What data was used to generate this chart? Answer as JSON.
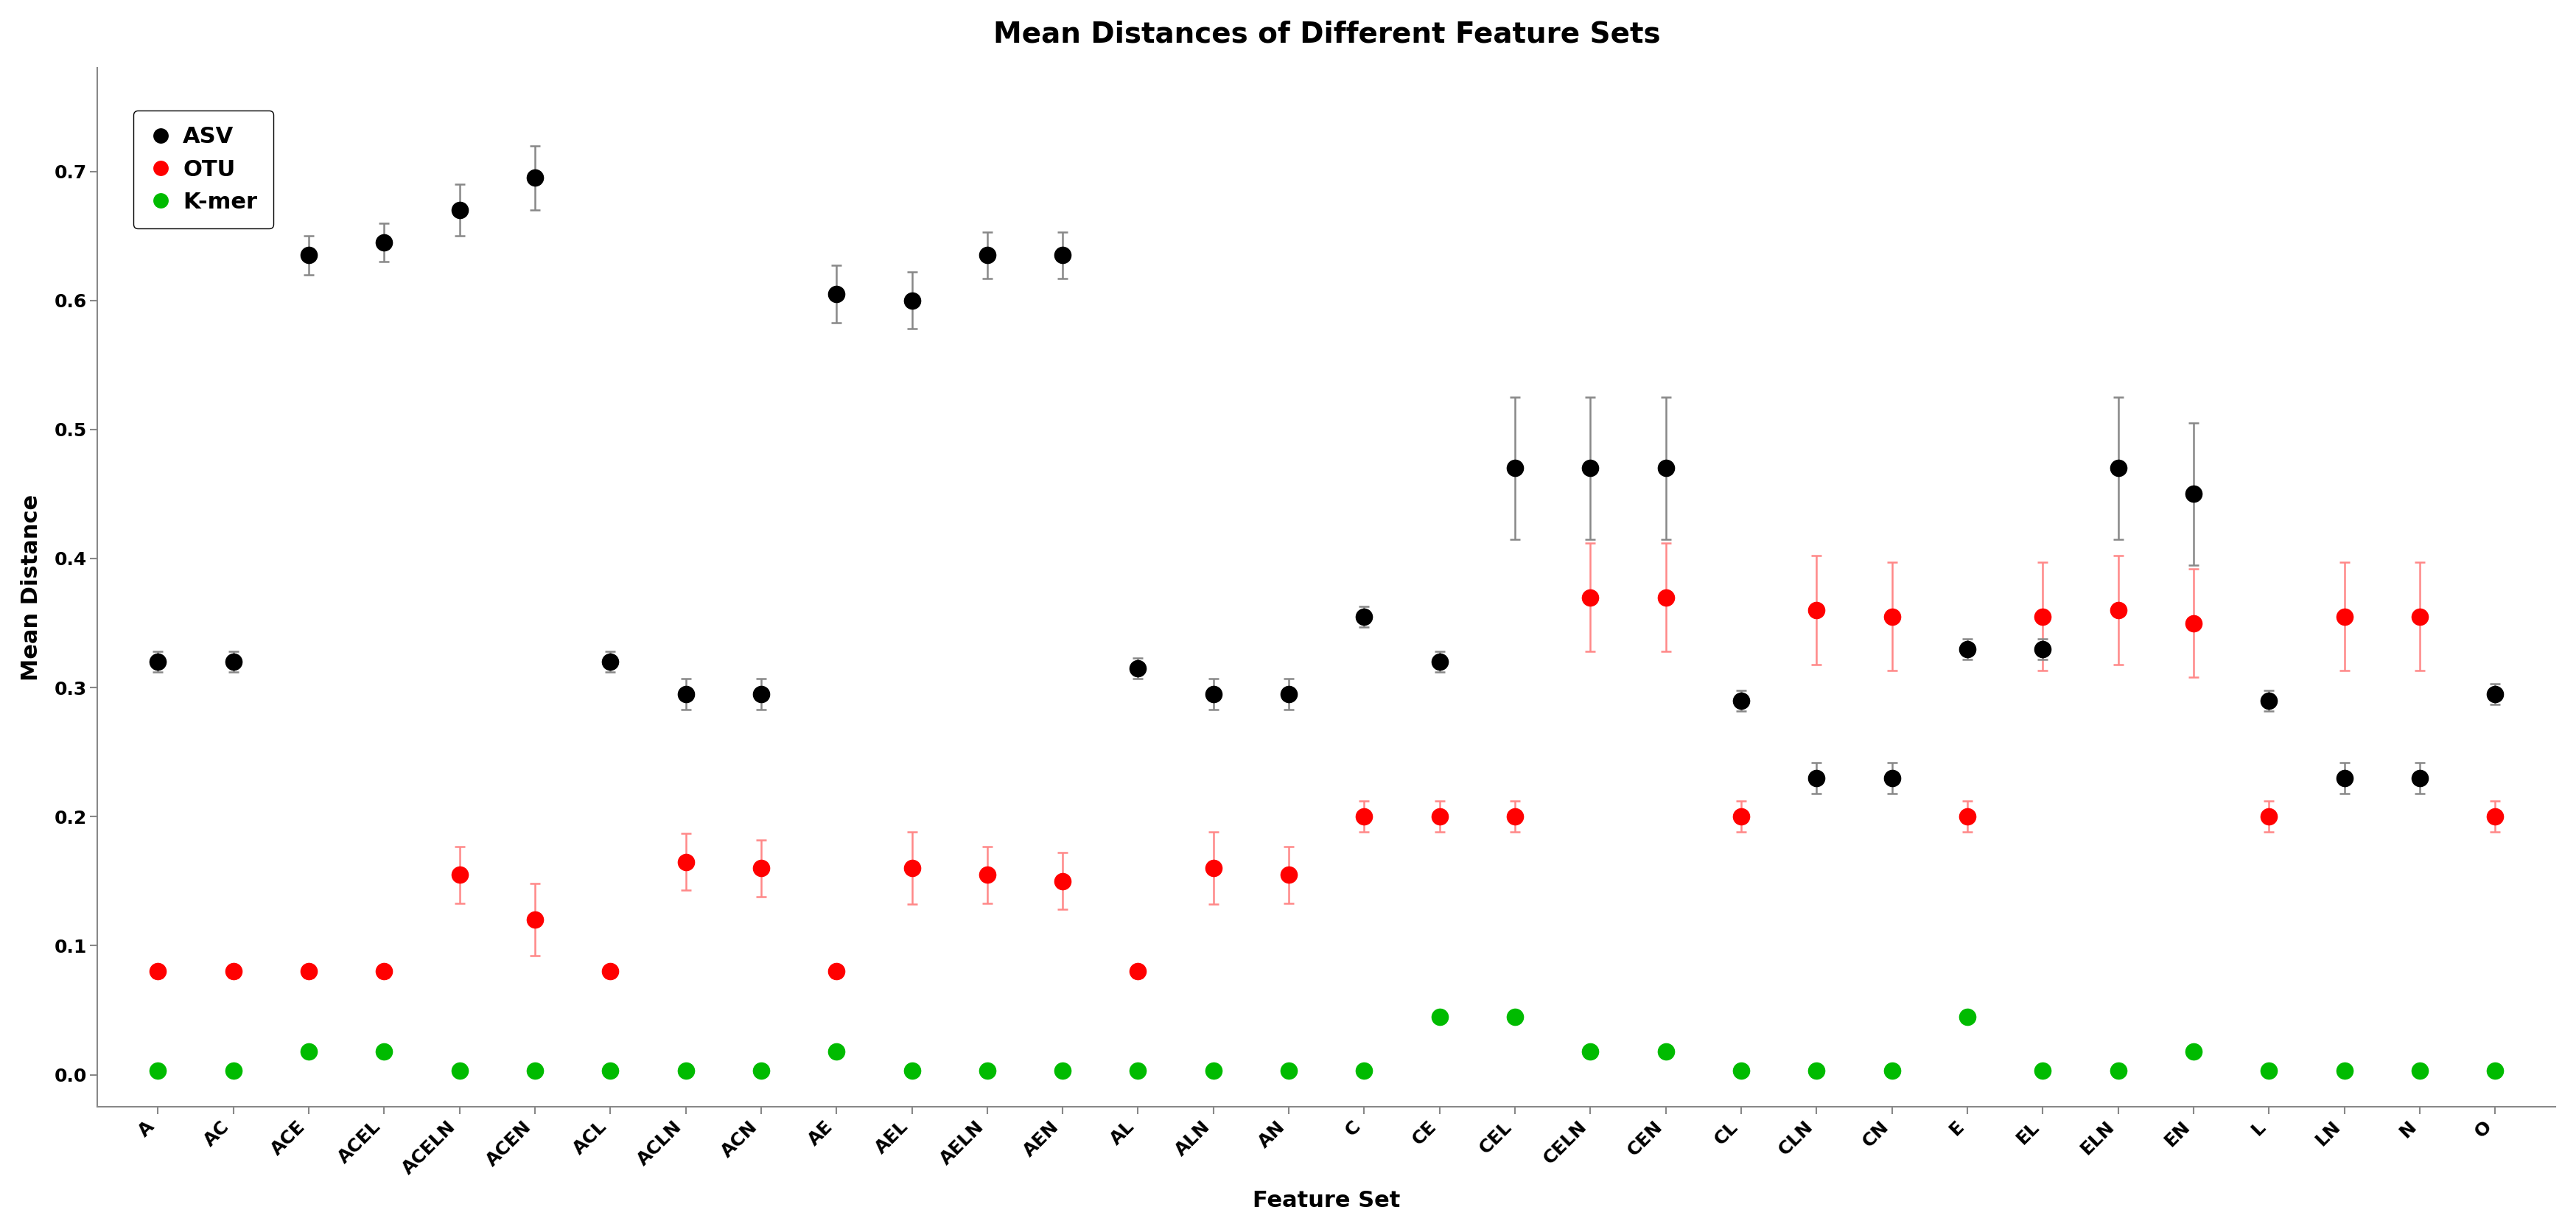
{
  "title": "Mean Distances of Different Feature Sets",
  "xlabel": "Feature Set",
  "ylabel": "Mean Distance",
  "categories": [
    "A",
    "AC",
    "ACE",
    "ACEL",
    "ACELN",
    "ACEN",
    "ACL",
    "ACLN",
    "ACN",
    "AE",
    "AEL",
    "AELN",
    "AEN",
    "AL",
    "ALN",
    "AN",
    "C",
    "CE",
    "CEL",
    "CELN",
    "CEN",
    "CL",
    "CLN",
    "CN",
    "E",
    "EL",
    "ELN",
    "EN",
    "L",
    "LN",
    "N",
    "O"
  ],
  "asv_mean": [
    0.32,
    0.32,
    0.635,
    0.645,
    0.67,
    0.695,
    0.32,
    0.295,
    0.295,
    0.605,
    0.6,
    0.635,
    0.635,
    0.315,
    0.295,
    0.295,
    0.355,
    0.32,
    0.47,
    0.47,
    0.47,
    0.29,
    0.23,
    0.23,
    0.33,
    0.33,
    0.47,
    0.45,
    0.29,
    0.23,
    0.23,
    0.295
  ],
  "asv_err": [
    0.008,
    0.008,
    0.015,
    0.015,
    0.02,
    0.025,
    0.008,
    0.012,
    0.012,
    0.022,
    0.022,
    0.018,
    0.018,
    0.008,
    0.012,
    0.012,
    0.008,
    0.008,
    0.055,
    0.055,
    0.055,
    0.008,
    0.012,
    0.012,
    0.008,
    0.008,
    0.055,
    0.055,
    0.008,
    0.012,
    0.012,
    0.008
  ],
  "otu_mean": [
    0.08,
    0.08,
    0.08,
    0.08,
    0.155,
    0.12,
    0.08,
    0.165,
    0.16,
    0.08,
    0.16,
    0.155,
    0.15,
    0.08,
    0.16,
    0.155,
    0.2,
    0.2,
    0.2,
    0.37,
    0.37,
    0.2,
    0.36,
    0.355,
    0.2,
    0.355,
    0.36,
    0.35,
    0.2,
    0.355,
    0.355,
    0.2
  ],
  "otu_err": [
    0.005,
    0.005,
    0.005,
    0.005,
    0.022,
    0.028,
    0.005,
    0.022,
    0.022,
    0.005,
    0.028,
    0.022,
    0.022,
    0.005,
    0.028,
    0.022,
    0.012,
    0.012,
    0.012,
    0.042,
    0.042,
    0.012,
    0.042,
    0.042,
    0.012,
    0.042,
    0.042,
    0.042,
    0.012,
    0.042,
    0.042,
    0.012
  ],
  "kmer_mean": [
    0.003,
    0.003,
    0.018,
    0.018,
    0.003,
    0.003,
    0.003,
    0.003,
    0.003,
    0.018,
    0.003,
    0.003,
    0.003,
    0.003,
    0.003,
    0.003,
    0.003,
    0.045,
    0.045,
    0.018,
    0.018,
    0.003,
    0.003,
    0.003,
    0.045,
    0.003,
    0.003,
    0.018,
    0.003,
    0.003,
    0.003,
    0.003
  ],
  "kmer_err": [
    0.0,
    0.0,
    0.0,
    0.0,
    0.0,
    0.0,
    0.0,
    0.0,
    0.0,
    0.0,
    0.0,
    0.0,
    0.0,
    0.0,
    0.0,
    0.0,
    0.0,
    0.0,
    0.0,
    0.0,
    0.0,
    0.0,
    0.0,
    0.0,
    0.0,
    0.0,
    0.0,
    0.0,
    0.0,
    0.0,
    0.0,
    0.0
  ],
  "asv_color": "#000000",
  "otu_color": "#FF0000",
  "kmer_color": "#00BB00",
  "background_color": "#FFFFFF",
  "ylim": [
    -0.025,
    0.78
  ],
  "yticks": [
    0.0,
    0.1,
    0.2,
    0.3,
    0.4,
    0.5,
    0.6,
    0.7
  ],
  "title_fontsize": 28,
  "axis_label_fontsize": 22,
  "tick_fontsize": 18,
  "legend_fontsize": 22
}
